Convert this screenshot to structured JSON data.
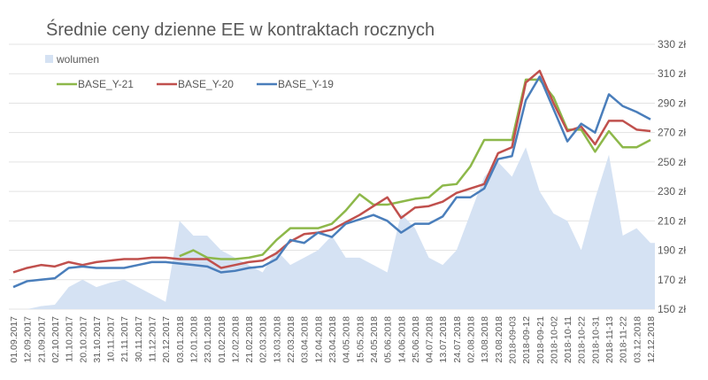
{
  "chart_data": {
    "type": "line",
    "title": "Średnie ceny dzienne EE w kontraktach rocznych",
    "xlabel": "",
    "ylabel": "",
    "ylim": [
      150,
      330
    ],
    "y_ticks": [
      "150 zł",
      "170 zł",
      "190 zł",
      "210 zł",
      "230 zł",
      "250 zł",
      "270 zł",
      "290 zł",
      "310 zł",
      "330 zł"
    ],
    "y_tick_values": [
      150,
      170,
      190,
      210,
      230,
      250,
      270,
      290,
      310,
      330
    ],
    "y_axis_side": "right",
    "grid": true,
    "legend_placement": "top-left",
    "categories": [
      "01.09.2017",
      "12.09.2017",
      "21.09.2017",
      "02.10.2017",
      "11.10.2017",
      "20.10.2017",
      "31.10.2017",
      "10.11.2017",
      "21.11.2017",
      "30.11.2017",
      "11.12.2017",
      "20.12.2017",
      "03.01.2018",
      "12.01.2018",
      "23.01.2018",
      "01.02.2018",
      "12.02.2018",
      "21.02.2018",
      "02.03.2018",
      "13.03.2018",
      "22.03.2018",
      "03.04.2018",
      "12.04.2018",
      "23.04.2018",
      "04.05.2018",
      "15.05.2018",
      "24.05.2018",
      "05.06.2018",
      "14.06.2018",
      "25.06.2018",
      "04.07.2018",
      "13.07.2018",
      "24.07.2018",
      "02.08.2018",
      "13.08.2018",
      "23.08.2018",
      "2018-09-03",
      "2018-09-12",
      "2018-09-21",
      "2018-10-02",
      "2018-10-11",
      "2018-10-22",
      "2018-10-31",
      "2018-11-13",
      "2018-11-22",
      "03.12.2018",
      "12.12.2018"
    ],
    "volume": {
      "name": "wolumen",
      "type": "area",
      "color": "#d5e2f3",
      "values": [
        150,
        150,
        152,
        153,
        165,
        170,
        165,
        168,
        170,
        165,
        160,
        155,
        210,
        200,
        200,
        190,
        185,
        180,
        175,
        190,
        180,
        185,
        190,
        200,
        185,
        185,
        180,
        175,
        215,
        205,
        185,
        180,
        190,
        215,
        240,
        250,
        240,
        260,
        230,
        215,
        210,
        190,
        225,
        255,
        200,
        205,
        195
      ]
    },
    "series": [
      {
        "name": "BASE_Y-21",
        "color": "#8db84a",
        "values": [
          null,
          null,
          null,
          null,
          null,
          null,
          null,
          null,
          null,
          null,
          null,
          null,
          186,
          190,
          185,
          184,
          184,
          185,
          187,
          197,
          205,
          205,
          205,
          208,
          217,
          228,
          221,
          221,
          223,
          225,
          226,
          234,
          235,
          247,
          265,
          265,
          265,
          306,
          306,
          294,
          272,
          272,
          257,
          271,
          260,
          260,
          265
        ]
      },
      {
        "name": "BASE_Y-20",
        "color": "#c0504d",
        "values": [
          175,
          178,
          180,
          179,
          182,
          180,
          182,
          183,
          184,
          184,
          185,
          185,
          184,
          184,
          184,
          178,
          180,
          182,
          183,
          188,
          196,
          201,
          202,
          204,
          209,
          214,
          220,
          226,
          212,
          219,
          220,
          223,
          229,
          232,
          235,
          256,
          260,
          304,
          312,
          290,
          271,
          274,
          262,
          278,
          278,
          272,
          271
        ]
      },
      {
        "name": "BASE_Y-19",
        "color": "#4a7ebb",
        "values": [
          165,
          169,
          170,
          171,
          178,
          179,
          178,
          178,
          178,
          180,
          182,
          182,
          181,
          180,
          179,
          175,
          176,
          178,
          179,
          184,
          197,
          195,
          202,
          199,
          208,
          211,
          214,
          210,
          202,
          208,
          208,
          213,
          226,
          226,
          232,
          252,
          254,
          292,
          308,
          286,
          264,
          276,
          270,
          296,
          288,
          284,
          279
        ]
      }
    ]
  }
}
